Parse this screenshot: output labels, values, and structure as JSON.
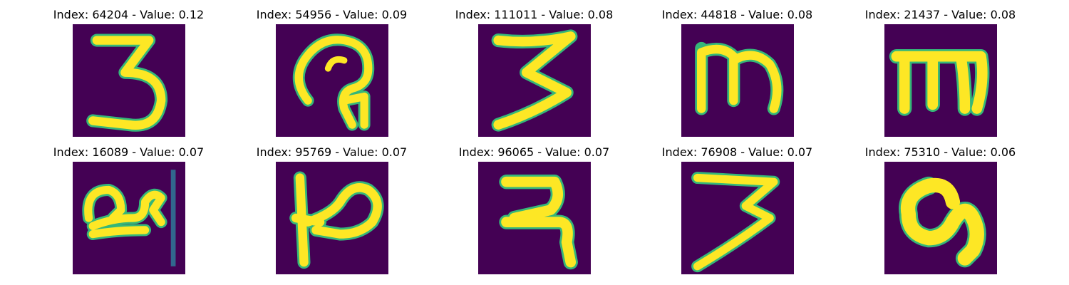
{
  "figure": {
    "panels": [
      {
        "title": "Index: 64204 - Value: 0.12",
        "glyph": "three-handwritten"
      },
      {
        "title": "Index: 54956 - Value: 0.09",
        "glyph": "loop-glyph"
      },
      {
        "title": "Index: 111011 - Value: 0.08",
        "glyph": "three-handwritten"
      },
      {
        "title": "Index: 44818 - Value: 0.08",
        "glyph": "m-shaped-glyph"
      },
      {
        "title": "Index: 21437 - Value: 0.08",
        "glyph": "m-shaped-glyph"
      },
      {
        "title": "Index: 16089 - Value: 0.07",
        "glyph": "loop-glyph-with-bar"
      },
      {
        "title": "Index: 95769 - Value: 0.07",
        "glyph": "p-shaped-glyph"
      },
      {
        "title": "Index: 96065 - Value: 0.07",
        "glyph": "hook-glyph"
      },
      {
        "title": "Index: 76908 - Value: 0.07",
        "glyph": "three-handwritten"
      },
      {
        "title": "Index: 75310 - Value: 0.06",
        "glyph": "ring-glyph"
      }
    ],
    "colors": {
      "background": "#440154",
      "stroke": "#fde725",
      "edge": "#35b779"
    }
  }
}
